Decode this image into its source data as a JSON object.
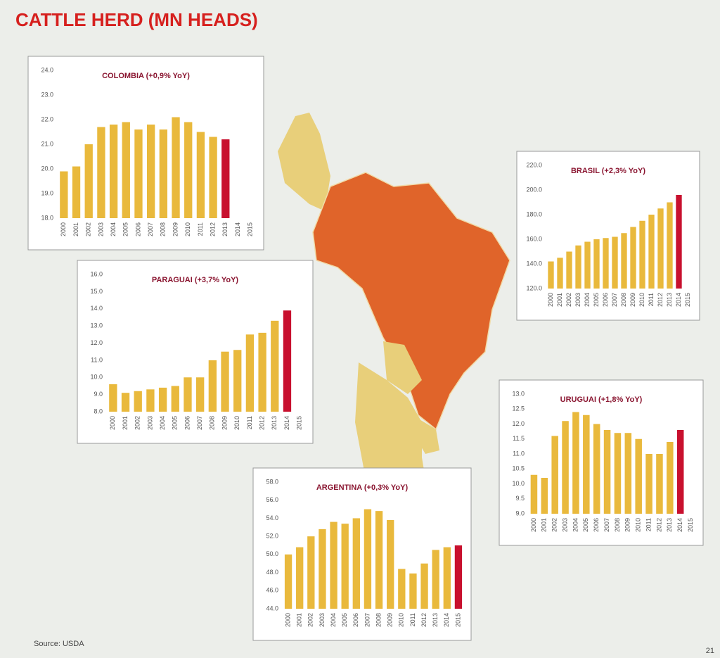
{
  "title": "CATTLE HERD (MN HEADS)",
  "source": "Source: USDA",
  "page": "21",
  "chart_data": [
    {
      "type": "bar",
      "title": "COLOMBIA (+0,9% YoY)",
      "color": "#e9b93c",
      "highlight_color": "#c8102e",
      "categories": [
        "2000",
        "2001",
        "2002",
        "2003",
        "2004",
        "2005",
        "2006",
        "2007",
        "2008",
        "2009",
        "2010",
        "2011",
        "2012",
        "2013",
        "2014",
        "2015"
      ],
      "values": [
        19.9,
        20.1,
        21.0,
        21.7,
        21.8,
        21.9,
        21.6,
        21.8,
        21.6,
        22.1,
        21.9,
        21.5,
        21.3,
        21.2,
        null,
        null
      ],
      "ylim": [
        18,
        24
      ],
      "yticks": [
        {
          "value": 18,
          "label": "18.0"
        },
        {
          "value": 19,
          "label": "19.0"
        },
        {
          "value": 20,
          "label": "20.0"
        },
        {
          "value": 21,
          "label": "21.0"
        },
        {
          "value": 22,
          "label": "22.0"
        },
        {
          "value": 23,
          "label": "23.0"
        },
        {
          "value": 24,
          "label": "24.0"
        }
      ]
    },
    {
      "type": "bar",
      "title": "BRASIL (+2,3% YoY)",
      "color": "#e9b93c",
      "highlight_color": "#c8102e",
      "categories": [
        "2000",
        "2001",
        "2002",
        "2003",
        "2004",
        "2005",
        "2006",
        "2007",
        "2008",
        "2009",
        "2010",
        "2011",
        "2012",
        "2013",
        "2014",
        "2015"
      ],
      "values": [
        142,
        145,
        150,
        155,
        158,
        160,
        161,
        162,
        165,
        170,
        175,
        180,
        185,
        190,
        196,
        null
      ],
      "ylim": [
        120,
        220
      ],
      "yticks": [
        {
          "value": 120,
          "label": "120.0"
        },
        {
          "value": 140,
          "label": "140.0"
        },
        {
          "value": 160,
          "label": "160.0"
        },
        {
          "value": 180,
          "label": "180.0"
        },
        {
          "value": 200,
          "label": "200.0"
        },
        {
          "value": 220,
          "label": "220.0"
        }
      ]
    },
    {
      "type": "bar",
      "title": "PARAGUAI (+3,7% YoY)",
      "color": "#e9b93c",
      "highlight_color": "#c8102e",
      "categories": [
        "2000",
        "2001",
        "2002",
        "2003",
        "2004",
        "2005",
        "2006",
        "2007",
        "2008",
        "2009",
        "2010",
        "2011",
        "2012",
        "2013",
        "2014",
        "2015"
      ],
      "values": [
        9.6,
        9.1,
        9.2,
        9.3,
        9.4,
        9.5,
        10.0,
        10.0,
        11.0,
        11.5,
        11.6,
        12.5,
        12.6,
        13.3,
        13.9,
        null
      ],
      "ylim": [
        8,
        16
      ],
      "yticks": [
        {
          "value": 8,
          "label": "8.0"
        },
        {
          "value": 9,
          "label": "9.0"
        },
        {
          "value": 10,
          "label": "10.0"
        },
        {
          "value": 11,
          "label": "11.0"
        },
        {
          "value": 12,
          "label": "12.0"
        },
        {
          "value": 13,
          "label": "13.0"
        },
        {
          "value": 14,
          "label": "14.0"
        },
        {
          "value": 15,
          "label": "15.0"
        },
        {
          "value": 16,
          "label": "16.0"
        }
      ]
    },
    {
      "type": "bar",
      "title": "URUGUAI (+1,8% YoY)",
      "color": "#e9b93c",
      "highlight_color": "#c8102e",
      "categories": [
        "2000",
        "2001",
        "2002",
        "2003",
        "2004",
        "2005",
        "2006",
        "2007",
        "2008",
        "2009",
        "2010",
        "2011",
        "2012",
        "2013",
        "2014",
        "2015"
      ],
      "values": [
        10.3,
        10.2,
        11.6,
        12.1,
        12.4,
        12.3,
        12.0,
        11.8,
        11.7,
        11.7,
        11.5,
        11.0,
        11.0,
        11.4,
        11.8,
        null
      ],
      "ylim": [
        9,
        13
      ],
      "yticks": [
        {
          "value": 9,
          "label": "9.0"
        },
        9.5,
        {
          "value": 10,
          "label": "10.0"
        },
        10.5,
        {
          "value": 11,
          "label": "11.0"
        },
        11.5,
        {
          "value": 12,
          "label": "12.0"
        },
        12.5,
        {
          "value": 13,
          "label": "13.0"
        }
      ]
    },
    {
      "type": "bar",
      "title": "ARGENTINA (+0,3% YoY)",
      "color": "#e9b93c",
      "highlight_color": "#c8102e",
      "categories": [
        "2000",
        "2001",
        "2002",
        "2003",
        "2004",
        "2005",
        "2006",
        "2007",
        "2008",
        "2009",
        "2010",
        "2011",
        "2012",
        "2013",
        "2014",
        "2015"
      ],
      "values": [
        50.0,
        50.8,
        52.0,
        52.8,
        53.6,
        53.4,
        54.0,
        55.0,
        54.8,
        53.8,
        48.4,
        47.9,
        49.0,
        50.5,
        50.8,
        51.0
      ],
      "ylim": [
        44,
        58
      ],
      "yticks": [
        {
          "value": 44,
          "label": "44.0"
        },
        {
          "value": 46,
          "label": "46.0"
        },
        {
          "value": 48,
          "label": "48.0"
        },
        {
          "value": 50,
          "label": "50.0"
        },
        {
          "value": 52,
          "label": "52.0"
        },
        {
          "value": 54,
          "label": "54.0"
        },
        {
          "value": 56,
          "label": "56.0"
        },
        {
          "value": 58,
          "label": "58.0"
        }
      ]
    }
  ]
}
